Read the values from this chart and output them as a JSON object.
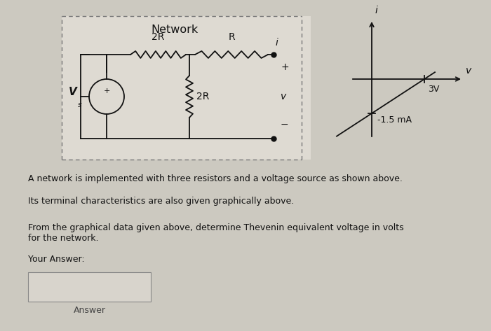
{
  "bg_color": "#ccc9c0",
  "circuit_bg": "#dedad2",
  "title": "Network",
  "label_2R_top": "2R",
  "label_R_top": "R",
  "label_2R_mid": "2R",
  "label_Vs": "V",
  "label_Vs_sub": "s",
  "label_i": "i",
  "label_v": "v",
  "label_plus": "+",
  "label_minus": "−",
  "graph_label_3V": "3V",
  "graph_label_15mA": "-1.5 mA",
  "graph_label_i": "i",
  "graph_label_v": "v",
  "text1a": "A network is implemented with three resistors and a voltage source as shown above.",
  "text1b": "Its terminal characteristics are also given graphically above.",
  "text2a": "From the graphical data given above, determine Thevenin equivalent voltage in volts",
  "text2b": "for the network.",
  "text3": "Your Answer:",
  "text4": "Answer",
  "font_color": "#111111",
  "wire_color": "#111111"
}
